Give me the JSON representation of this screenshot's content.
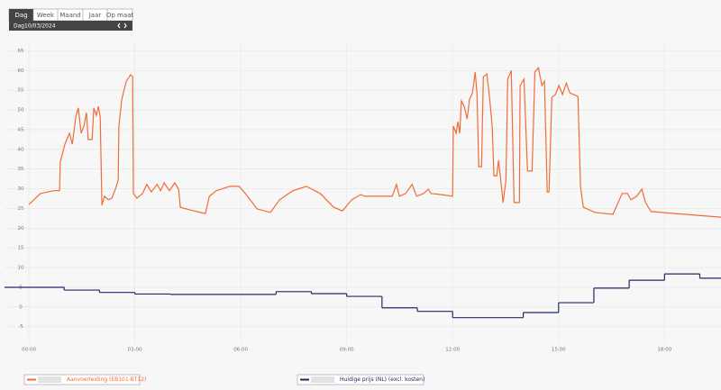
{
  "ui": {
    "tabs": [
      "Dag",
      "Week",
      "Maand",
      "Jaar",
      "Op maat"
    ],
    "period_label": "Dag",
    "date": "10/03/2024"
  },
  "chart_data": {
    "type": "line",
    "xlim": [
      -0.69,
      19.6
    ],
    "ylim": [
      -9.4,
      67.6
    ],
    "yticks": [
      -5,
      0,
      5,
      10,
      15,
      20,
      25,
      30,
      35,
      40,
      45,
      50,
      55,
      60,
      65
    ],
    "xticks": [
      {
        "value": 0,
        "label": "00:00"
      },
      {
        "value": 3,
        "label": "03:00"
      },
      {
        "value": 6,
        "label": "06:00"
      },
      {
        "value": 9,
        "label": "09:00"
      },
      {
        "value": 12,
        "label": "12:00"
      },
      {
        "value": 15,
        "label": "15:00"
      },
      {
        "value": 18,
        "label": "18:00"
      }
    ],
    "grid": true,
    "series": [
      {
        "name": "Aanvoerleiding (EB101-BT12)",
        "color": "#f26b3a",
        "style": "line",
        "x": [
          0,
          0.33,
          0.71,
          0.87,
          0.89,
          1.02,
          1.15,
          1.23,
          1.33,
          1.4,
          1.48,
          1.56,
          1.63,
          1.68,
          1.79,
          1.84,
          1.91,
          1.97,
          2.02,
          2.07,
          2.14,
          2.25,
          2.35,
          2.45,
          2.53,
          2.55,
          2.63,
          2.76,
          2.88,
          2.94,
          2.96,
          3.06,
          3.22,
          3.34,
          3.47,
          3.63,
          3.73,
          3.83,
          3.98,
          4.13,
          4.24,
          4.29,
          4.54,
          5.0,
          5.11,
          5.31,
          5.69,
          5.95,
          6.13,
          6.46,
          6.84,
          7.1,
          7.48,
          7.86,
          8.25,
          8.63,
          8.88,
          9.14,
          9.39,
          9.52,
          10.29,
          10.41,
          10.49,
          10.67,
          10.85,
          10.98,
          11.18,
          11.31,
          11.39,
          11.69,
          12.0,
          12.02,
          12.1,
          12.15,
          12.2,
          12.25,
          12.33,
          12.41,
          12.48,
          12.56,
          12.64,
          12.69,
          12.74,
          12.82,
          12.87,
          12.97,
          13.05,
          13.12,
          13.17,
          13.25,
          13.3,
          13.35,
          13.43,
          13.51,
          13.56,
          13.66,
          13.74,
          13.89,
          13.91,
          14.02,
          14.12,
          14.25,
          14.33,
          14.43,
          14.53,
          14.6,
          14.68,
          14.73,
          14.81,
          14.91,
          15.01,
          15.11,
          15.22,
          15.32,
          15.55,
          15.62,
          15.7,
          16.03,
          16.54,
          16.8,
          16.95,
          17.05,
          17.21,
          17.36,
          17.46,
          17.62,
          18.59,
          19.6
        ],
        "values": [
          26,
          28.8,
          29.5,
          29.5,
          36.8,
          41.3,
          44.1,
          41.3,
          48.2,
          50.5,
          44.1,
          45.9,
          49.3,
          42.5,
          42.5,
          50.5,
          48.6,
          50.9,
          48.2,
          25.8,
          28.1,
          27.2,
          27.6,
          29.9,
          32.2,
          45.9,
          52.7,
          57.3,
          58.9,
          58.4,
          28.8,
          27.6,
          28.8,
          31.1,
          29.2,
          31.1,
          29.5,
          31.5,
          29.5,
          31.5,
          29.9,
          25.3,
          24.7,
          23.7,
          28.1,
          29.5,
          30.6,
          30.6,
          28.8,
          24.9,
          24.0,
          27.2,
          29.5,
          30.6,
          28.8,
          25.3,
          24.4,
          27.2,
          28.5,
          28.1,
          28.1,
          31.1,
          28.1,
          28.8,
          31.1,
          28.1,
          28.8,
          29.9,
          28.8,
          28.5,
          28.1,
          45.9,
          44.1,
          47.0,
          44.1,
          52.3,
          50.9,
          47.7,
          52.7,
          54.3,
          59.6,
          53.9,
          35.6,
          35.6,
          58.4,
          59.1,
          52.7,
          45.9,
          33.3,
          33.3,
          37.2,
          33.3,
          26.5,
          32.2,
          57.8,
          60.0,
          26.5,
          26.5,
          56.2,
          57.8,
          34.5,
          34.5,
          59.6,
          60.7,
          56.2,
          57.3,
          29.2,
          29.2,
          53.2,
          53.9,
          56.2,
          53.9,
          56.8,
          54.3,
          53.4,
          30.6,
          25.3,
          24.0,
          23.5,
          28.8,
          28.8,
          27.2,
          28.1,
          29.9,
          26.5,
          24.2,
          23.5,
          22.8
        ]
      },
      {
        "name": "Huidige prijs (NL) (excl. kosten)",
        "color": "#1f2a6b",
        "style": "step",
        "x": [
          -0.69,
          1,
          2,
          3,
          4,
          5,
          6,
          7,
          8,
          9,
          10,
          11,
          12,
          13,
          14,
          15,
          16,
          17,
          18,
          19
        ],
        "values": [
          5.0,
          4.3,
          3.7,
          3.3,
          3.2,
          3.2,
          3.2,
          3.9,
          3.4,
          2.7,
          -0.2,
          -1.1,
          -2.7,
          -2.7,
          -1.4,
          1.1,
          4.8,
          6.8,
          8.4,
          7.3
        ]
      }
    ]
  }
}
